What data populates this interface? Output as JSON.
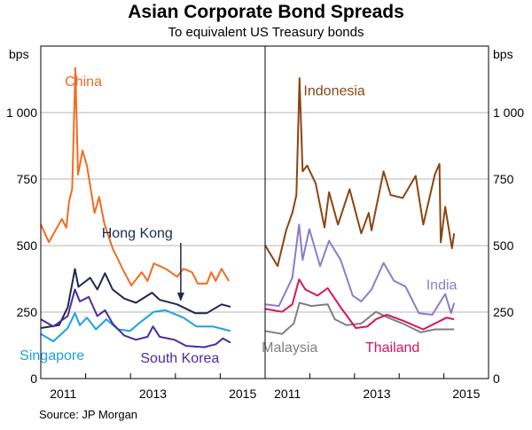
{
  "chart_data": {
    "type": "line",
    "title": "Asian Corporate Bond Spreads",
    "subtitle": "To equivalent US Treasury bonds",
    "ylabel_left": "bps",
    "ylabel_right": "bps",
    "ylim": [
      0,
      1250
    ],
    "xlim": [
      2011.0,
      2016.0
    ],
    "y_ticks": [
      0,
      250,
      500,
      750,
      1000
    ],
    "y_tick_labels": [
      "0",
      "250",
      "500",
      "750",
      "1 000"
    ],
    "x_ticks": [
      2012,
      2013,
      2014,
      2015
    ],
    "x_tick_labels": [
      {
        "year": 2011,
        "label": "2011"
      },
      {
        "year": 2013,
        "label": "2013"
      },
      {
        "year": 2015,
        "label": "2015"
      }
    ],
    "grid": true,
    "source": "Source:    JP Morgan",
    "panels": [
      {
        "series": [
          {
            "name": "China",
            "color": "#F26B21",
            "label_pos": [
              2011.95,
              1100
            ],
            "points": [
              [
                2011.0,
                580
              ],
              [
                2011.18,
                513
              ],
              [
                2011.47,
                600
              ],
              [
                2011.57,
                567
              ],
              [
                2011.63,
                667
              ],
              [
                2011.7,
                713
              ],
              [
                2011.77,
                1168
              ],
              [
                2011.83,
                767
              ],
              [
                2011.93,
                857
              ],
              [
                2012.03,
                800
              ],
              [
                2012.2,
                623
              ],
              [
                2012.3,
                683
              ],
              [
                2012.42,
                580
              ],
              [
                2012.6,
                490
              ],
              [
                2012.86,
                400
              ],
              [
                2013.02,
                350
              ],
              [
                2013.25,
                400
              ],
              [
                2013.38,
                367
              ],
              [
                2013.52,
                433
              ],
              [
                2013.78,
                413
              ],
              [
                2014.04,
                383
              ],
              [
                2014.18,
                413
              ],
              [
                2014.37,
                400
              ],
              [
                2014.5,
                357
              ],
              [
                2014.7,
                357
              ],
              [
                2014.8,
                400
              ],
              [
                2014.9,
                367
              ],
              [
                2015.03,
                413
              ],
              [
                2015.19,
                367
              ]
            ]
          },
          {
            "name": "Hong Kong",
            "color": "#1C2A4E",
            "label_pos": [
              2013.15,
              530
            ],
            "arrow_to": [
              2014.12,
              290
            ],
            "points": [
              [
                2011.0,
                190
              ],
              [
                2011.41,
                201
              ],
              [
                2011.6,
                268
              ],
              [
                2011.76,
                412
              ],
              [
                2011.84,
                345
              ],
              [
                2012.1,
                379
              ],
              [
                2012.26,
                335
              ],
              [
                2012.43,
                396
              ],
              [
                2012.6,
                335
              ],
              [
                2012.86,
                301
              ],
              [
                2013.12,
                285
              ],
              [
                2013.48,
                323
              ],
              [
                2013.65,
                296
              ],
              [
                2014.04,
                279
              ],
              [
                2014.44,
                246
              ],
              [
                2014.7,
                246
              ],
              [
                2015.03,
                279
              ],
              [
                2015.23,
                270
              ]
            ]
          },
          {
            "name": "Singapore",
            "color": "#1BA1E2",
            "label_pos": [
              2011.25,
              70
            ],
            "points": [
              [
                2011.0,
                168
              ],
              [
                2011.28,
                140
              ],
              [
                2011.6,
                190
              ],
              [
                2011.76,
                246
              ],
              [
                2011.87,
                201
              ],
              [
                2012.03,
                229
              ],
              [
                2012.23,
                185
              ],
              [
                2012.46,
                223
              ],
              [
                2012.72,
                185
              ],
              [
                2012.99,
                179
              ],
              [
                2013.22,
                212
              ],
              [
                2013.52,
                251
              ],
              [
                2013.78,
                257
              ],
              [
                2014.18,
                229
              ],
              [
                2014.47,
                196
              ],
              [
                2014.83,
                196
              ],
              [
                2015.23,
                179
              ]
            ]
          },
          {
            "name": "South Korea",
            "color": "#4B2C9C",
            "label_pos": [
              2014.1,
              60
            ],
            "points": [
              [
                2011.0,
                223
              ],
              [
                2011.28,
                196
              ],
              [
                2011.6,
                235
              ],
              [
                2011.76,
                335
              ],
              [
                2011.87,
                290
              ],
              [
                2012.07,
                307
              ],
              [
                2012.26,
                235
              ],
              [
                2012.43,
                257
              ],
              [
                2012.6,
                207
              ],
              [
                2012.86,
                162
              ],
              [
                2013.12,
                146
              ],
              [
                2013.38,
                157
              ],
              [
                2013.5,
                196
              ],
              [
                2013.65,
                157
              ],
              [
                2013.98,
                146
              ],
              [
                2014.24,
                123
              ],
              [
                2014.64,
                118
              ],
              [
                2014.9,
                129
              ],
              [
                2015.06,
                151
              ],
              [
                2015.23,
                135
              ]
            ]
          }
        ]
      },
      {
        "series": [
          {
            "name": "Indonesia",
            "color": "#8B4513",
            "label_pos": [
              2012.55,
              1065
            ],
            "points": [
              [
                2011.0,
                501
              ],
              [
                2011.28,
                423
              ],
              [
                2011.47,
                557
              ],
              [
                2011.61,
                623
              ],
              [
                2011.7,
                690
              ],
              [
                2011.77,
                1129
              ],
              [
                2011.84,
                779
              ],
              [
                2011.94,
                801
              ],
              [
                2012.13,
                734
              ],
              [
                2012.33,
                568
              ],
              [
                2012.43,
                701
              ],
              [
                2012.63,
                579
              ],
              [
                2012.89,
                712
              ],
              [
                2013.15,
                546
              ],
              [
                2013.32,
                623
              ],
              [
                2013.38,
                557
              ],
              [
                2013.65,
                779
              ],
              [
                2013.81,
                690
              ],
              [
                2014.08,
                679
              ],
              [
                2014.37,
                762
              ],
              [
                2014.54,
                579
              ],
              [
                2014.8,
                768
              ],
              [
                2014.9,
                807
              ],
              [
                2014.93,
                512
              ],
              [
                2015.03,
                646
              ],
              [
                2015.18,
                490
              ],
              [
                2015.23,
                546
              ]
            ]
          },
          {
            "name": "India",
            "color": "#8B7CC8",
            "label_pos": [
              2014.95,
              335
            ],
            "points": [
              [
                2011.0,
                279
              ],
              [
                2011.31,
                273
              ],
              [
                2011.61,
                379
              ],
              [
                2011.76,
                579
              ],
              [
                2011.84,
                446
              ],
              [
                2011.99,
                562
              ],
              [
                2012.23,
                423
              ],
              [
                2012.43,
                518
              ],
              [
                2012.69,
                446
              ],
              [
                2012.96,
                312
              ],
              [
                2013.15,
                290
              ],
              [
                2013.38,
                335
              ],
              [
                2013.65,
                435
              ],
              [
                2013.88,
                368
              ],
              [
                2014.14,
                346
              ],
              [
                2014.44,
                246
              ],
              [
                2014.74,
                240
              ],
              [
                2015.03,
                318
              ],
              [
                2015.16,
                246
              ],
              [
                2015.23,
                285
              ]
            ]
          },
          {
            "name": "Malaysia",
            "color": "#7F7F7F",
            "label_pos": [
              2011.55,
              100
            ],
            "points": [
              [
                2011.0,
                179
              ],
              [
                2011.38,
                168
              ],
              [
                2011.64,
                207
              ],
              [
                2011.77,
                285
              ],
              [
                2012.03,
                273
              ],
              [
                2012.4,
                279
              ],
              [
                2012.56,
                223
              ],
              [
                2012.82,
                201
              ],
              [
                2013.15,
                207
              ],
              [
                2013.48,
                251
              ],
              [
                2013.75,
                229
              ],
              [
                2014.08,
                207
              ],
              [
                2014.48,
                174
              ],
              [
                2014.8,
                185
              ],
              [
                2015.23,
                185
              ]
            ]
          },
          {
            "name": "Thailand",
            "color": "#D6145F",
            "label_pos": [
              2013.85,
              100
            ],
            "points": [
              [
                2011.0,
                262
              ],
              [
                2011.38,
                251
              ],
              [
                2011.61,
                279
              ],
              [
                2011.76,
                373
              ],
              [
                2011.9,
                335
              ],
              [
                2012.17,
                312
              ],
              [
                2012.4,
                340
              ],
              [
                2012.69,
                268
              ],
              [
                2013.03,
                190
              ],
              [
                2013.29,
                196
              ],
              [
                2013.48,
                223
              ],
              [
                2013.72,
                240
              ],
              [
                2014.08,
                218
              ],
              [
                2014.54,
                185
              ],
              [
                2014.8,
                207
              ],
              [
                2015.06,
                229
              ],
              [
                2015.23,
                223
              ]
            ]
          }
        ]
      }
    ]
  }
}
